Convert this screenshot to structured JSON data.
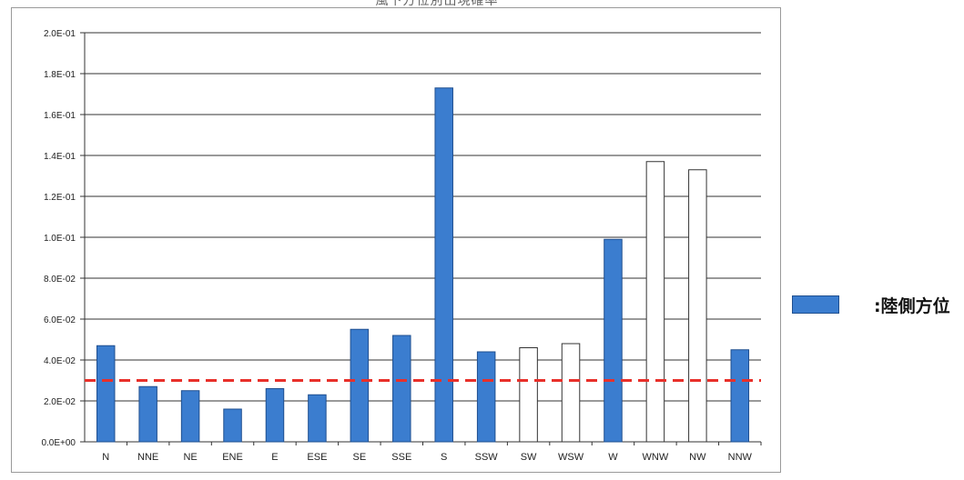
{
  "chart_data": {
    "type": "bar",
    "title": "風下方位別出現確率",
    "categories": [
      "N",
      "NNE",
      "NE",
      "ENE",
      "E",
      "ESE",
      "SE",
      "SSE",
      "S",
      "SSW",
      "SW",
      "WSW",
      "W",
      "WNW",
      "NW",
      "NNW"
    ],
    "values": [
      0.047,
      0.027,
      0.025,
      0.016,
      0.026,
      0.023,
      0.055,
      0.052,
      0.173,
      0.044,
      0.046,
      0.048,
      0.099,
      0.137,
      0.133,
      0.045
    ],
    "land_side": [
      true,
      true,
      true,
      true,
      true,
      true,
      true,
      true,
      true,
      true,
      false,
      false,
      true,
      false,
      false,
      true
    ],
    "ylim": [
      0,
      0.2
    ],
    "yticks": [
      "0.0E+00",
      "2.0E-02",
      "4.0E-02",
      "6.0E-02",
      "8.0E-02",
      "1.0E-01",
      "1.2E-01",
      "1.4E-01",
      "1.6E-01",
      "1.8E-01",
      "2.0E-01"
    ],
    "reference_line": 0.03,
    "grid": true,
    "colors": {
      "land_bar": "#3b7dcf",
      "other_bar": "#ffffff",
      "reference_line": "#e8302a",
      "grid": "#333333"
    }
  },
  "legend": {
    "label": ":陸側方位"
  }
}
